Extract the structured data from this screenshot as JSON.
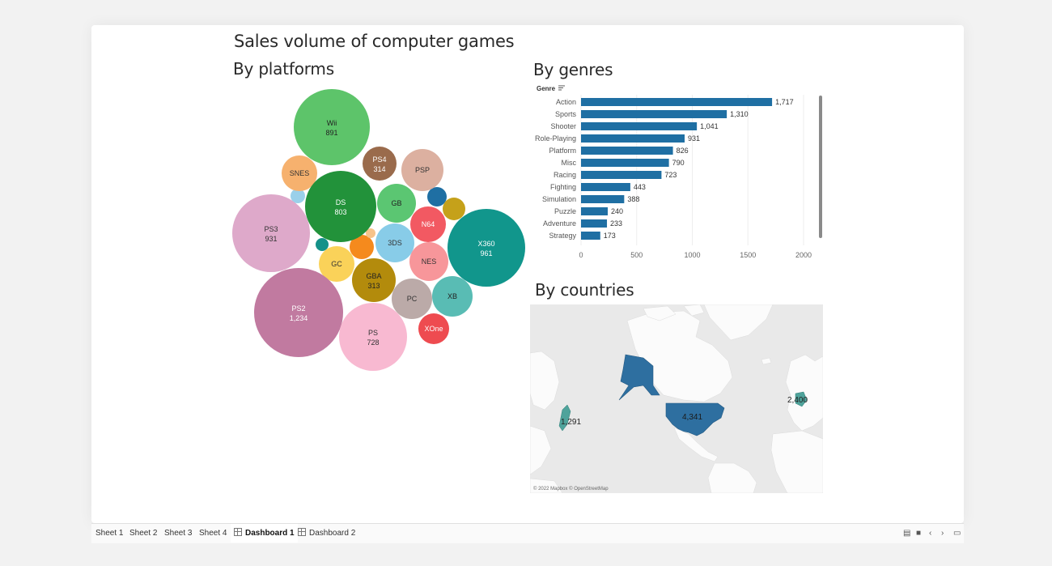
{
  "dashboard": {
    "title": "Sales volume of computer games",
    "platforms_title": "By platforms",
    "genres_title": "By genres",
    "countries_title": "By countries"
  },
  "platform_bubbles": [
    {
      "label": "Wii",
      "value": "891",
      "color": "#5dc46a",
      "text": "#222"
    },
    {
      "label": "PS4",
      "value": "314",
      "color": "#9a6b4c",
      "text": "#fff"
    },
    {
      "label": "PSP",
      "value": "",
      "color": "#dcb0a0",
      "text": "#333"
    },
    {
      "label": "SNES",
      "value": "",
      "color": "#f6b16e",
      "text": "#333"
    },
    {
      "label": "DS",
      "value": "803",
      "color": "#22923a",
      "text": "#fff"
    },
    {
      "label": "GB",
      "value": "",
      "color": "#5bc672",
      "text": "#222"
    },
    {
      "label": "PS3",
      "value": "931",
      "color": "#dea9ca",
      "text": "#333"
    },
    {
      "label": "N64",
      "value": "",
      "color": "#f25962",
      "text": "#fff"
    },
    {
      "label": "3DS",
      "value": "",
      "color": "#88cce8",
      "text": "#333"
    },
    {
      "label": "X360",
      "value": "961",
      "color": "#11968c",
      "text": "#fff"
    },
    {
      "label": "GC",
      "value": "",
      "color": "#fad259",
      "text": "#333"
    },
    {
      "label": "NES",
      "value": "",
      "color": "#f7969a",
      "text": "#333"
    },
    {
      "label": "GBA",
      "value": "313",
      "color": "#b38b0c",
      "text": "#222"
    },
    {
      "label": "PS2",
      "value": "1,234",
      "color": "#c17aa0",
      "text": "#fff"
    },
    {
      "label": "PC",
      "value": "",
      "color": "#bbaaa8",
      "text": "#333"
    },
    {
      "label": "XB",
      "value": "",
      "color": "#59bcb4",
      "text": "#222"
    },
    {
      "label": "PS",
      "value": "728",
      "color": "#f8b9d1",
      "text": "#333"
    },
    {
      "label": "XOne",
      "value": "",
      "color": "#ee4b50",
      "text": "#fff"
    }
  ],
  "chart_data": {
    "type": "bar",
    "orientation": "horizontal",
    "title": "By genres",
    "ylabel": "Genre",
    "categories": [
      "Action",
      "Sports",
      "Shooter",
      "Role-Playing",
      "Platform",
      "Misc",
      "Racing",
      "Fighting",
      "Simulation",
      "Puzzle",
      "Adventure",
      "Strategy"
    ],
    "values": [
      1717,
      1310,
      1041,
      931,
      826,
      790,
      723,
      443,
      388,
      240,
      233,
      173
    ],
    "data_labels": [
      "1,717",
      "1,310",
      "1,041",
      "931",
      "826",
      "790",
      "723",
      "443",
      "388",
      "240",
      "233",
      "173"
    ],
    "xlim": [
      0,
      2000
    ],
    "xticks": [
      "0",
      "500",
      "1000",
      "1500",
      "2000"
    ],
    "bar_color": "#1f6fa3",
    "grid": true
  },
  "countries_map": {
    "labels": [
      "1,291",
      "4,341",
      "2,400"
    ],
    "credit": "© 2022 Mapbox © OpenStreetMap",
    "highlight_color": "#2e6fa0"
  },
  "bottom_bar": {
    "tabs": [
      "Sheet 1",
      "Sheet 2",
      "Sheet 3",
      "Sheet 4",
      "Dashboard 1",
      "Dashboard 2"
    ],
    "active_tab": "Dashboard 1"
  }
}
